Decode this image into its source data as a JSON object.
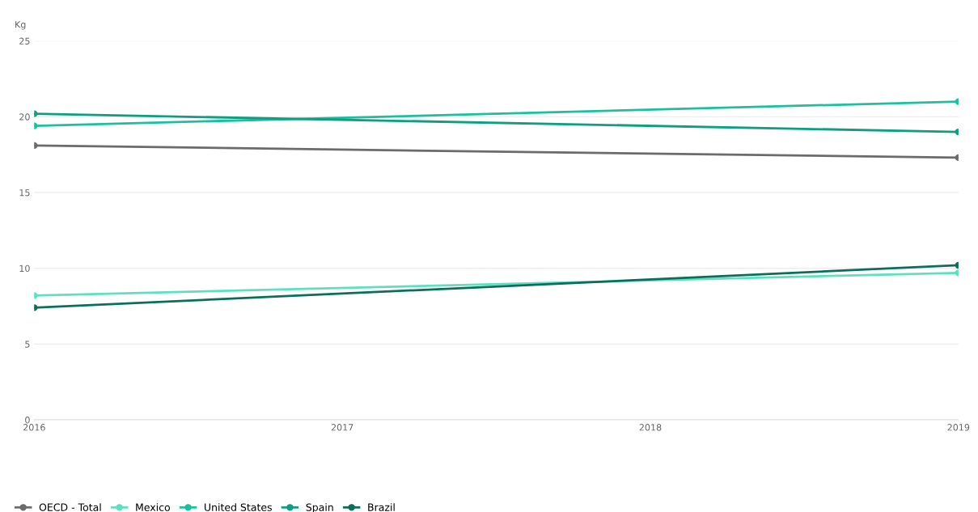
{
  "chart_data": {
    "type": "line",
    "ylabel": "Kg",
    "x": [
      2016,
      2019
    ],
    "xlim": [
      2016,
      2019
    ],
    "xticks": [
      2016,
      2017,
      2018,
      2019
    ],
    "ylim": [
      0,
      25
    ],
    "yticks": [
      0,
      5,
      10,
      15,
      20,
      25
    ],
    "grid": "y",
    "legend": "bottom left",
    "marker": "circle",
    "series": [
      {
        "name": "OECD - Total",
        "color": "#6b6b6b",
        "values": [
          18.1,
          17.3
        ]
      },
      {
        "name": "Mexico",
        "color": "#5ee0c0",
        "values": [
          8.2,
          9.7
        ]
      },
      {
        "name": "United States",
        "color": "#1dbf9f",
        "values": [
          19.4,
          21.0
        ]
      },
      {
        "name": "Spain",
        "color": "#0f9e80",
        "values": [
          20.2,
          19.0
        ]
      },
      {
        "name": "Brazil",
        "color": "#0b6e5a",
        "values": [
          7.4,
          10.2
        ]
      }
    ]
  }
}
